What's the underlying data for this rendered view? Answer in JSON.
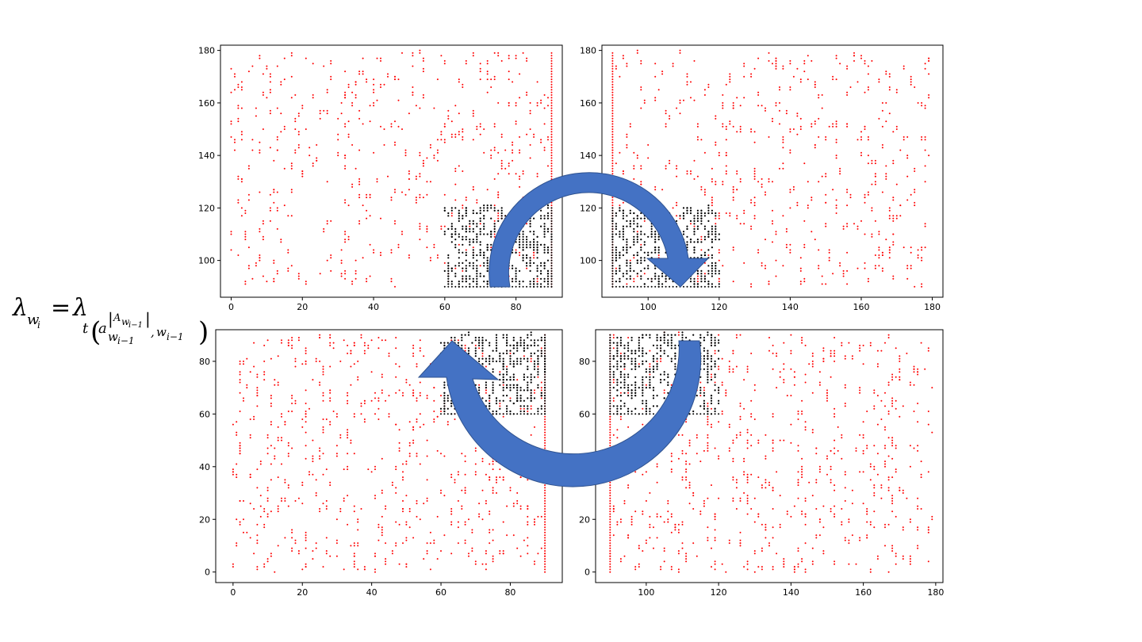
{
  "formula": {
    "main": "λ",
    "main_sub": "w",
    "main_sub_sub": "i",
    "equals": "=",
    "rhs": "λ",
    "rhs_sub_t": "t",
    "rhs_a": "a",
    "rhs_a_sup": "A",
    "rhs_a_sup_w": "w",
    "rhs_a_sup_idx": "i−1",
    "rhs_a_sub_w": "w",
    "rhs_a_sub_idx": "i−1",
    "rhs_comma": ",",
    "rhs_w": "w",
    "rhs_w_idx": "i−1"
  },
  "colors": {
    "exterior_points": "#ff0000",
    "interior_points": "#000000",
    "arrow_fill": "#4472c4",
    "arrow_stroke": "#2f528f"
  },
  "chart_data": [
    {
      "type": "scatter",
      "panel": "top-left",
      "xlim": [
        -3,
        93
      ],
      "ylim": [
        86,
        182
      ],
      "xticks": [
        0,
        20,
        40,
        60,
        80
      ],
      "yticks": [
        100,
        120,
        140,
        160,
        180
      ],
      "tick_labels_x": [
        "0",
        "20",
        "40",
        "60",
        "80"
      ],
      "tick_labels_y": [
        "100",
        "120",
        "140",
        "160",
        "180"
      ],
      "series": [
        {
          "color": "red",
          "x_range": [
            0,
            90
          ],
          "y_range": [
            90,
            179
          ],
          "approx_points": 480,
          "edge_line": {
            "axis": "x",
            "at": 90
          }
        },
        {
          "color": "black",
          "x_range": [
            60,
            90
          ],
          "y_range": [
            90,
            120
          ],
          "approx_points": 380,
          "edge_line": {
            "axis": "x",
            "at": 90
          }
        }
      ]
    },
    {
      "type": "scatter",
      "panel": "top-right",
      "xlim": [
        87,
        183
      ],
      "ylim": [
        86,
        182
      ],
      "xticks": [
        100,
        120,
        140,
        160,
        180
      ],
      "yticks": [
        100,
        120,
        140,
        160,
        180
      ],
      "tick_labels_x": [
        "100",
        "120",
        "140",
        "160",
        "180"
      ],
      "tick_labels_y": [
        "100",
        "120",
        "140",
        "160",
        "180"
      ],
      "series": [
        {
          "color": "red",
          "x_range": [
            90,
            179
          ],
          "y_range": [
            90,
            179
          ],
          "approx_points": 480,
          "edge_line": {
            "axis": "x",
            "at": 90
          }
        },
        {
          "color": "black",
          "x_range": [
            90,
            120
          ],
          "y_range": [
            90,
            120
          ],
          "approx_points": 380,
          "edge_line": {
            "axis": "x",
            "at": 90
          }
        }
      ]
    },
    {
      "type": "scatter",
      "panel": "bottom-left",
      "xlim": [
        -5,
        95
      ],
      "ylim": [
        -4,
        92
      ],
      "xticks": [
        0,
        20,
        40,
        60,
        80
      ],
      "yticks": [
        0,
        20,
        40,
        60,
        80
      ],
      "tick_labels_x": [
        "0",
        "20",
        "40",
        "60",
        "80"
      ],
      "tick_labels_y": [
        "0",
        "20",
        "40",
        "60",
        "80"
      ],
      "series": [
        {
          "color": "red",
          "x_range": [
            0,
            90
          ],
          "y_range": [
            0,
            90
          ],
          "approx_points": 600,
          "edge_line": {
            "axis": "x",
            "at": 90
          }
        },
        {
          "color": "black",
          "x_range": [
            60,
            90
          ],
          "y_range": [
            60,
            90
          ],
          "approx_points": 400,
          "edge_line": {
            "axis": "x",
            "at": 90
          }
        }
      ]
    },
    {
      "type": "scatter",
      "panel": "bottom-right",
      "xlim": [
        86,
        182
      ],
      "ylim": [
        -4,
        92
      ],
      "xticks": [
        100,
        120,
        140,
        160,
        180
      ],
      "yticks": [
        0,
        20,
        40,
        60,
        80
      ],
      "tick_labels_x": [
        "100",
        "120",
        "140",
        "160",
        "180"
      ],
      "tick_labels_y": [
        "0",
        "20",
        "40",
        "60",
        "80"
      ],
      "series": [
        {
          "color": "red",
          "x_range": [
            90,
            179
          ],
          "y_range": [
            0,
            90
          ],
          "approx_points": 600,
          "edge_line": {
            "axis": "x",
            "at": 90
          }
        },
        {
          "color": "black",
          "x_range": [
            90,
            120
          ],
          "y_range": [
            60,
            90
          ],
          "approx_points": 400,
          "edge_line": {
            "axis": "x",
            "at": 90
          }
        }
      ]
    }
  ]
}
